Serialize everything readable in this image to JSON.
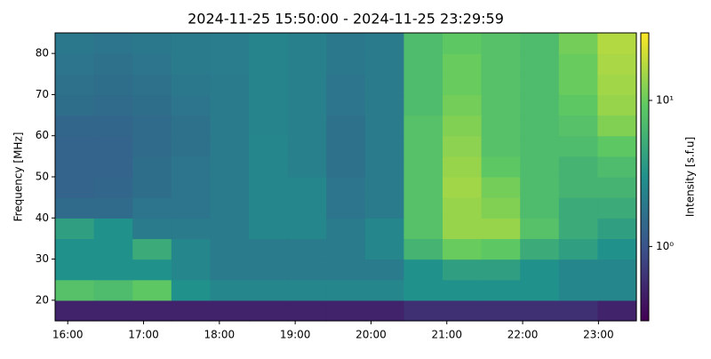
{
  "chart_data": {
    "type": "spectrogram",
    "title": "2024-11-25 15:50:00 - 2024-11-25 23:29:59",
    "ylabel": "Frequency [MHz]",
    "colorbar_label": "Intensity [s.f.u]",
    "xlim": [
      "2024-11-25 15:50:00",
      "2024-11-25 23:29:59"
    ],
    "xticks": [
      "16:00",
      "17:00",
      "18:00",
      "19:00",
      "20:00",
      "21:00",
      "22:00",
      "23:00"
    ],
    "ylim": [
      15,
      85
    ],
    "yticks": [
      20,
      30,
      40,
      50,
      60,
      70,
      80
    ],
    "clim": [
      0.31,
      29
    ],
    "color_scale": "log",
    "colormap": "viridis",
    "cticks": [
      {
        "value": 1,
        "label": "10⁰"
      },
      {
        "value": 10,
        "label": "10¹"
      }
    ],
    "z": [
      [
        0.5,
        0.5,
        0.5,
        0.5,
        0.5,
        0.5,
        0.5,
        0.5,
        0.5,
        0.6,
        0.6,
        0.6,
        0.6,
        0.6,
        0.5
      ],
      [
        8,
        7,
        9,
        3,
        2.5,
        2.5,
        2.5,
        2.5,
        2.5,
        3,
        3,
        3,
        3,
        2.5,
        2.5
      ],
      [
        3,
        3,
        3,
        2.5,
        2,
        2,
        2,
        2,
        2,
        3,
        4,
        4,
        3,
        2.5,
        2.5
      ],
      [
        3,
        3,
        5,
        2.5,
        2,
        2,
        2,
        2,
        2.5,
        6,
        10,
        9,
        5,
        4,
        3
      ],
      [
        4,
        3,
        2,
        2,
        2,
        2.5,
        2.5,
        2,
        2.5,
        8,
        14,
        14,
        8,
        5,
        4
      ],
      [
        1.5,
        1.5,
        1.8,
        1.8,
        2,
        2.5,
        2.5,
        1.8,
        2,
        8,
        14,
        12,
        7,
        5,
        5
      ],
      [
        1.3,
        1.4,
        1.6,
        1.8,
        2,
        2.5,
        2.5,
        1.8,
        2,
        8,
        15,
        11,
        7,
        6,
        6
      ],
      [
        1.3,
        1.3,
        1.6,
        1.8,
        2,
        2.5,
        2.2,
        1.7,
        2,
        8,
        14,
        9,
        7,
        6,
        7
      ],
      [
        1.3,
        1.3,
        1.5,
        1.7,
        2,
        2.5,
        2.2,
        1.7,
        2,
        8,
        13,
        8,
        7,
        7,
        9
      ],
      [
        1.4,
        1.4,
        1.5,
        1.7,
        2,
        2.4,
        2.2,
        1.7,
        2,
        8,
        12,
        8,
        7,
        8,
        12
      ],
      [
        1.6,
        1.5,
        1.6,
        1.8,
        2,
        2.4,
        2.2,
        1.8,
        2,
        7,
        11,
        8,
        7,
        9,
        14
      ],
      [
        1.7,
        1.6,
        1.7,
        1.9,
        2,
        2.4,
        2.2,
        1.8,
        2,
        7,
        10,
        8,
        7,
        10,
        15
      ],
      [
        1.8,
        1.7,
        1.8,
        2,
        2.1,
        2.4,
        2.2,
        1.9,
        2,
        7,
        10,
        8,
        7,
        10,
        16
      ],
      [
        1.9,
        1.8,
        1.9,
        2,
        2.1,
        2.4,
        2.2,
        1.9,
        2,
        7,
        9,
        8,
        7,
        11,
        17
      ]
    ]
  }
}
